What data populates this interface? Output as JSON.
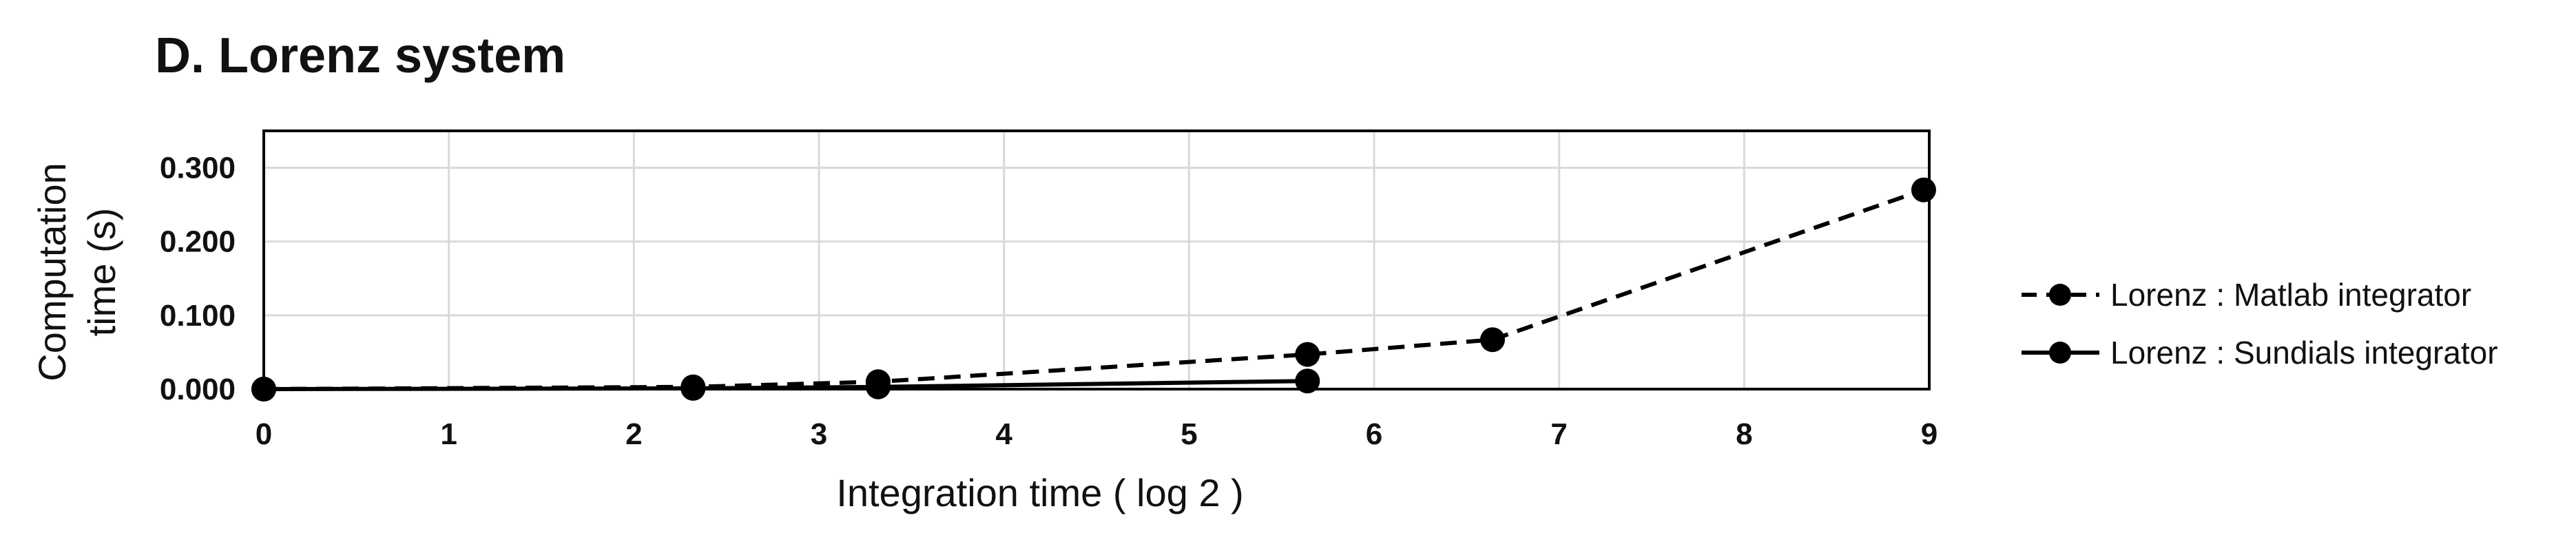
{
  "chart_data": {
    "type": "line",
    "title": "D. Lorenz system",
    "xlabel": "Integration time ( log 2 )",
    "ylabel_lines": [
      "Computation",
      "time (s)"
    ],
    "xlim": [
      0,
      9
    ],
    "ylim": [
      0,
      0.35
    ],
    "x_ticks": [
      "0",
      "1",
      "2",
      "3",
      "4",
      "5",
      "6",
      "7",
      "8",
      "9"
    ],
    "y_ticks": [
      "0.000",
      "0.100",
      "0.200",
      "0.300"
    ],
    "grid": true,
    "legend_position": "right",
    "series": [
      {
        "name": "Lorenz : Matlab integrator",
        "style": "dashed",
        "color": "#000000",
        "x": [
          0,
          2.32,
          3.32,
          5.64,
          6.64,
          8.97
        ],
        "y": [
          0.0,
          0.003,
          0.01,
          0.047,
          0.067,
          0.27
        ]
      },
      {
        "name": "Lorenz : Sundials integrator",
        "style": "solid",
        "color": "#000000",
        "x": [
          0,
          2.32,
          3.32,
          5.64
        ],
        "y": [
          0.0,
          0.001,
          0.003,
          0.011
        ]
      }
    ]
  }
}
